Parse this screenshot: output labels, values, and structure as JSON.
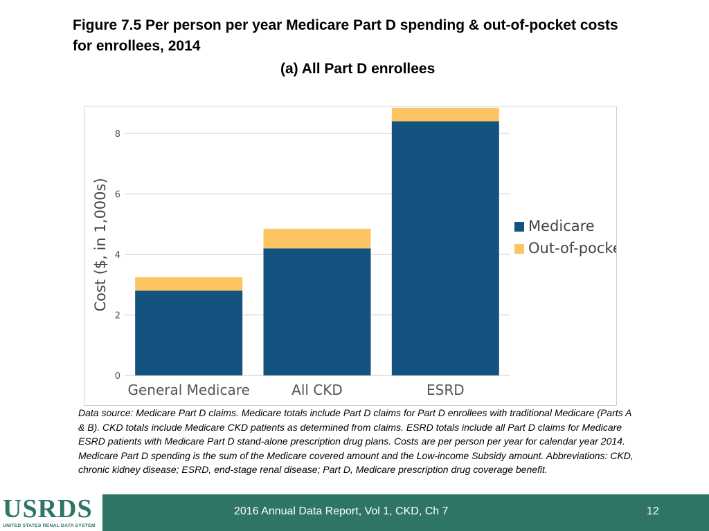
{
  "slide": {
    "title": "Figure 7.5 Per person per year Medicare Part D spending & out-of-pocket costs for enrollees, 2014",
    "subtitle": "(a) All Part D enrollees",
    "source_note": "Data source: Medicare Part D claims. Medicare totals include Part D claims for Part D enrollees with traditional Medicare (Parts A & B). CKD totals include Medicare CKD patients as determined from claims. ESRD totals include all Part D claims for Medicare ESRD patients with Medicare Part D stand-alone prescription drug plans. Costs are per person per year for calendar year 2014. Medicare Part D spending is the sum of the Medicare covered amount and the Low-income Subsidy amount. Abbreviations: CKD, chronic kidney disease; ESRD, end-stage renal disease; Part D, Medicare prescription drug coverage benefit."
  },
  "footer": {
    "logo_text": "USRDS",
    "logo_subtext": "UNITED STATES RENAL DATA SYSTEM",
    "report_label": "2016 Annual Data Report, Vol 1, CKD, Ch 7",
    "page_number": "12"
  },
  "chart_data": {
    "type": "bar",
    "stacked": true,
    "categories": [
      "General Medicare",
      "All CKD",
      "ESRD"
    ],
    "series": [
      {
        "name": "Medicare",
        "color": "#14537f",
        "values": [
          2.8,
          4.2,
          8.4
        ]
      },
      {
        "name": "Out-of-pocket",
        "color": "#fdc464",
        "values": [
          0.45,
          0.65,
          0.45
        ]
      }
    ],
    "ylabel": "Cost ($, in 1,000s)",
    "xlabel": "",
    "ylim": [
      0,
      8.8
    ],
    "yticks": [
      "0",
      "2",
      "4",
      "6",
      "8"
    ],
    "ytick_values": [
      0,
      2,
      4,
      6,
      8
    ],
    "grid": true,
    "legend_position": "right"
  }
}
